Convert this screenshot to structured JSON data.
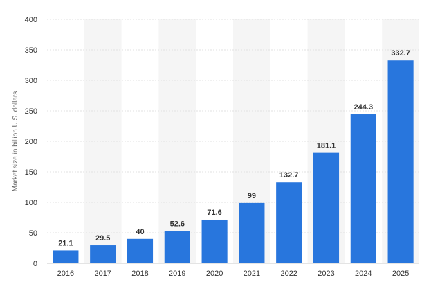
{
  "chart_data": {
    "type": "bar",
    "title": "",
    "xlabel": "",
    "ylabel": "Market size in billion U.S. dollars",
    "categories": [
      "2016",
      "2017",
      "2018",
      "2019",
      "2020",
      "2021",
      "2022",
      "2023",
      "2024",
      "2025"
    ],
    "values": [
      21.1,
      29.5,
      40,
      52.6,
      71.6,
      99,
      132.7,
      181.1,
      244.3,
      332.7
    ],
    "value_labels": [
      "21.1",
      "29.5",
      "40",
      "52.6",
      "71.6",
      "99",
      "132.7",
      "181.1",
      "244.3",
      "332.7"
    ],
    "ylim": [
      0,
      400
    ],
    "yticks": [
      0,
      50,
      100,
      150,
      200,
      250,
      300,
      350,
      400
    ],
    "ytick_labels": [
      "0",
      "50",
      "100",
      "150",
      "200",
      "250",
      "300",
      "350",
      "400"
    ],
    "grid": true,
    "legend": "none",
    "colors": {
      "bar": "#2876dd",
      "grid": "#e1e1e1",
      "band": "#f5f5f5",
      "axis": "#333333"
    }
  }
}
